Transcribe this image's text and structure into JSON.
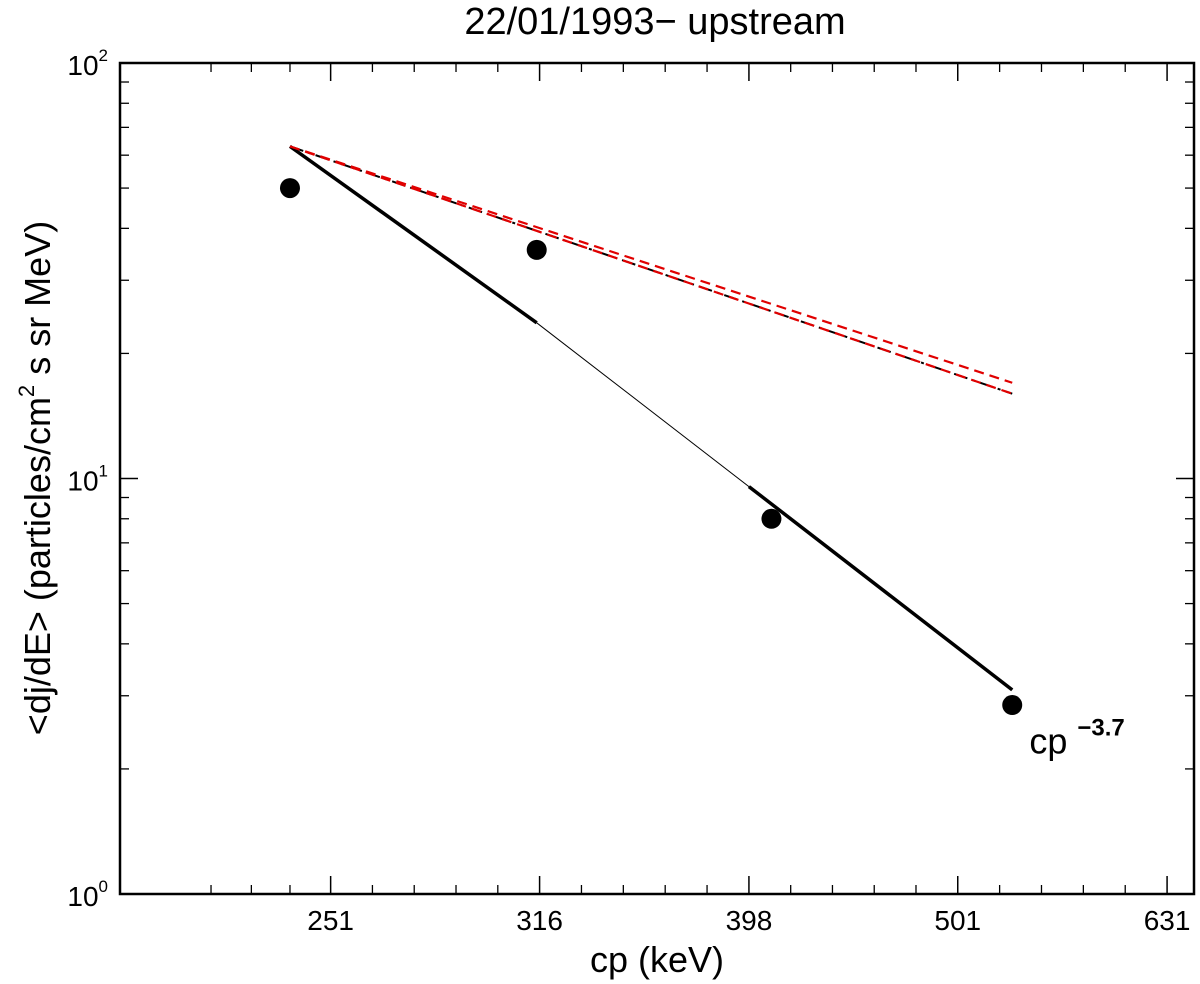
{
  "chart_data": {
    "type": "scatter",
    "title": "22/01/1993− upstream",
    "xlabel": "cp (keV)",
    "ylabel": "<dj/dE> (particles/cm² s sr MeV)",
    "ylabel_parts": {
      "before": "<dj/dE> (particles/cm",
      "sup": "2",
      "after": " s sr MeV)"
    },
    "xscale": "log",
    "yscale": "log",
    "xlim": [
      199,
      650
    ],
    "ylim": [
      1,
      100
    ],
    "x_ticks": [
      {
        "value": 251,
        "label": "251"
      },
      {
        "value": 316,
        "label": "316"
      },
      {
        "value": 398,
        "label": "398"
      },
      {
        "value": 501,
        "label": "501"
      },
      {
        "value": 631,
        "label": "631"
      }
    ],
    "y_ticks": [
      {
        "value": 1,
        "base": "10",
        "exp": "0"
      },
      {
        "value": 10,
        "base": "10",
        "exp": "1"
      },
      {
        "value": 100,
        "base": "10",
        "exp": "2"
      }
    ],
    "grid": false,
    "series": [
      {
        "name": "observed flux",
        "kind": "points",
        "color": "#000000",
        "x": [
          240,
          315,
          408,
          532
        ],
        "y": [
          50,
          35.5,
          8.0,
          2.85
        ]
      },
      {
        "name": "power-law fit",
        "kind": "line",
        "color": "#000000",
        "x": [
          240,
          315,
          532
        ],
        "y": [
          63,
          23.7,
          3.1
        ]
      },
      {
        "name": "model dash-dot",
        "kind": "line",
        "style": "dashdot",
        "color": "#000000",
        "x": [
          240,
          532
        ],
        "y": [
          63,
          16
        ]
      },
      {
        "name": "model red dashed",
        "kind": "line",
        "style": "dashed",
        "color": "#e00000",
        "x": [
          240,
          532
        ],
        "y": [
          63,
          17
        ]
      },
      {
        "name": "model red dashed 2",
        "kind": "line",
        "style": "dashed",
        "color": "#e00000",
        "x": [
          240,
          532
        ],
        "y": [
          63,
          16
        ]
      }
    ],
    "annotations": [
      {
        "text": "cp",
        "sup": "−3.7",
        "x": 535,
        "y": 2.3
      }
    ]
  }
}
